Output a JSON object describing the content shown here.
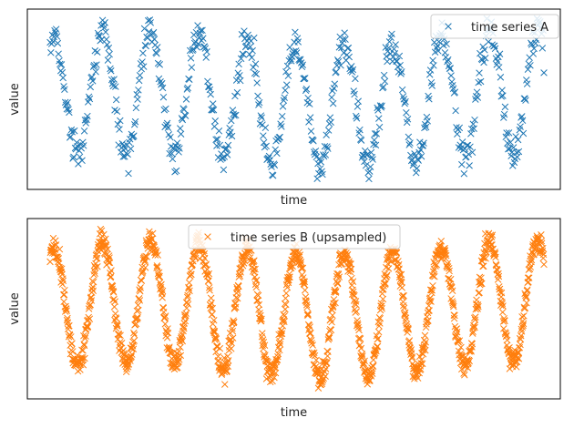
{
  "chart_data": [
    {
      "type": "scatter",
      "title": "",
      "xlabel": "time",
      "ylabel": "value",
      "xticks": false,
      "yticks": false,
      "grid": false,
      "legend_position": "top-right",
      "series": [
        {
          "name": "time series A",
          "marker": "x",
          "color": "#1f77b4",
          "n_points": 650
        }
      ]
    },
    {
      "type": "scatter",
      "title": "",
      "xlabel": "time",
      "ylabel": "value",
      "xticks": false,
      "yticks": false,
      "grid": false,
      "legend_position": "top-center",
      "series": [
        {
          "name": "time series B (upsampled)",
          "marker": "x",
          "color": "#ff7f0e",
          "n_points": 1400
        }
      ]
    }
  ]
}
